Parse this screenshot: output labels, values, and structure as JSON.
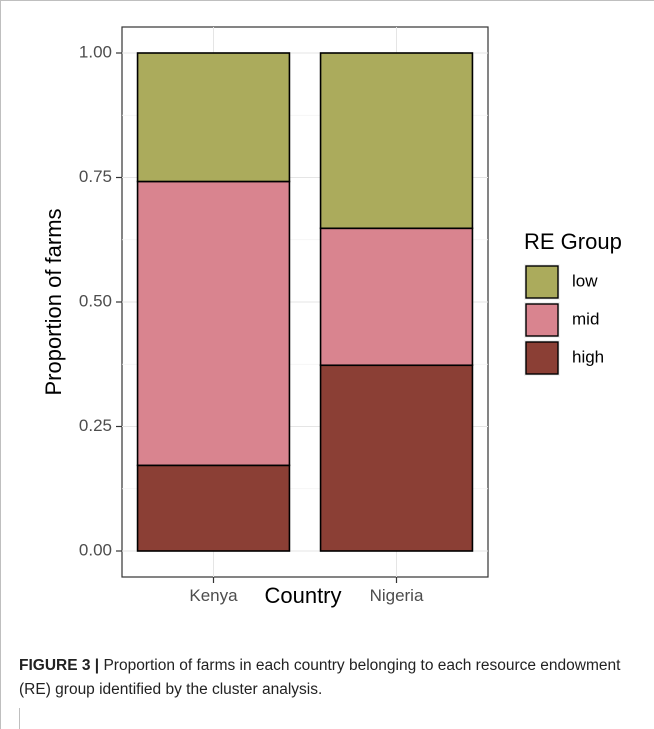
{
  "chart_data": {
    "type": "bar",
    "stacked": true,
    "categories": [
      "Kenya",
      "Nigeria"
    ],
    "series": [
      {
        "name": "high",
        "color": "#8b3f35",
        "values": [
          0.172,
          0.373
        ]
      },
      {
        "name": "mid",
        "color": "#d9848f",
        "values": [
          0.57,
          0.275
        ]
      },
      {
        "name": "low",
        "color": "#abab5c",
        "values": [
          0.258,
          0.352
        ]
      }
    ],
    "legend_order": [
      "low",
      "mid",
      "high"
    ],
    "legend_title": "RE Group",
    "legend_position": "right",
    "xlabel": "Country",
    "ylabel": "Proportion of farms",
    "ylim": [
      0,
      1
    ],
    "yticks": [
      "0.00",
      "0.25",
      "0.50",
      "0.75",
      "1.00"
    ],
    "grid": true
  },
  "caption": {
    "label": "FIGURE 3 |",
    "text": " Proportion of farms in each country belonging to each resource endowment (RE) group identified by the cluster analysis."
  }
}
